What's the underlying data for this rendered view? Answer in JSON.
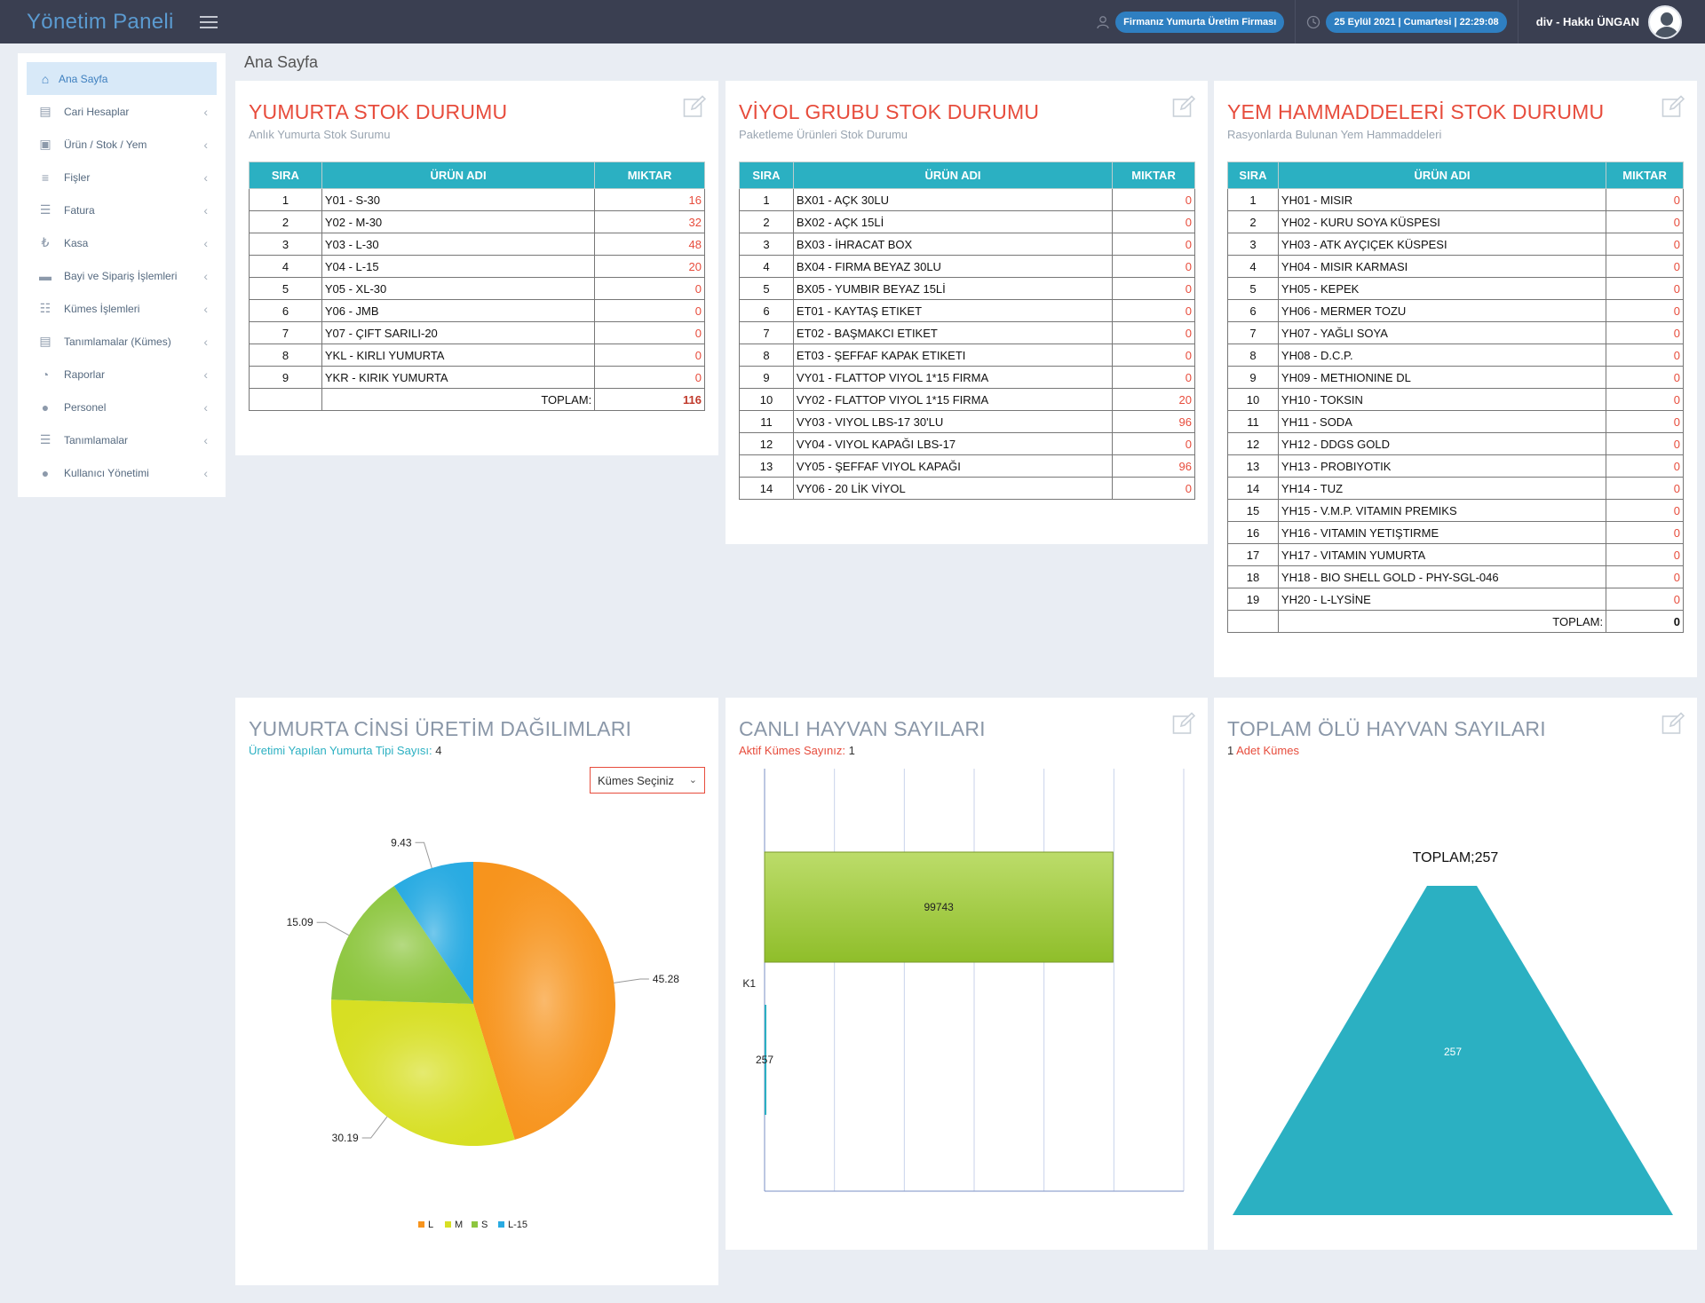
{
  "header": {
    "brand": "Yönetim Paneli",
    "company": "Firmanız Yumurta Üretim Firması",
    "datetime": "25 Eylül 2021 | Cumartesi | 22:29:08",
    "user": "div - Hakkı ÜNGAN"
  },
  "sidebar": {
    "items": [
      {
        "label": "Ana Sayfa",
        "icon": "home-icon"
      },
      {
        "label": "Cari Hesaplar",
        "icon": "book-icon"
      },
      {
        "label": "Ürün / Stok / Yem",
        "icon": "cart-icon"
      },
      {
        "label": "Fişler",
        "icon": "database-icon"
      },
      {
        "label": "Fatura",
        "icon": "server-icon"
      },
      {
        "label": "Kasa",
        "icon": "lira-icon"
      },
      {
        "label": "Bayi ve Sipariş İşlemleri",
        "icon": "truck-icon"
      },
      {
        "label": "Kümes İşlemleri",
        "icon": "sitemap-icon"
      },
      {
        "label": "Tanımlamalar (Kümes)",
        "icon": "book-icon"
      },
      {
        "label": "Raporlar",
        "icon": "dashboard-icon"
      },
      {
        "label": "Personel",
        "icon": "user-icon"
      },
      {
        "label": "Tanımlamalar",
        "icon": "list-icon"
      },
      {
        "label": "Kullanıcı Yönetimi",
        "icon": "user-icon"
      }
    ]
  },
  "breadcrumb": "Ana Sayfa",
  "egg_stock": {
    "title": "YUMURTA STOK DURUMU",
    "subtitle": "Anlık Yumurta Stok Surumu",
    "columns": [
      "SIRA",
      "ÜRÜN ADI",
      "MIKTAR"
    ],
    "rows": [
      [
        "1",
        "Y01 - S-30",
        "16"
      ],
      [
        "2",
        "Y02 - M-30",
        "32"
      ],
      [
        "3",
        "Y03 - L-30",
        "48"
      ],
      [
        "4",
        "Y04 - L-15",
        "20"
      ],
      [
        "5",
        "Y05 - XL-30",
        "0"
      ],
      [
        "6",
        "Y06 - JMB",
        "0"
      ],
      [
        "7",
        "Y07 - ÇIFT SARILI-20",
        "0"
      ],
      [
        "8",
        "YKL - KIRLI YUMURTA",
        "0"
      ],
      [
        "9",
        "YKR - KIRIK YUMURTA",
        "0"
      ]
    ],
    "total_label": "TOPLAM:",
    "total": "116"
  },
  "viyol_stock": {
    "title": "VİYOL GRUBU STOK DURUMU",
    "subtitle": "Paketleme Ürünleri Stok Durumu",
    "columns": [
      "SIRA",
      "ÜRÜN ADI",
      "MIKTAR"
    ],
    "rows": [
      [
        "1",
        "BX01 - AÇK 30LU",
        "0"
      ],
      [
        "2",
        "BX02 - AÇK 15Lİ",
        "0"
      ],
      [
        "3",
        "BX03 - İHRACAT BOX",
        "0"
      ],
      [
        "4",
        "BX04 - FIRMA BEYAZ 30LU",
        "0"
      ],
      [
        "5",
        "BX05 - YUMBIR BEYAZ 15Lİ",
        "0"
      ],
      [
        "6",
        "ET01 - KAYTAŞ ETIKET",
        "0"
      ],
      [
        "7",
        "ET02 - BAŞMAKCI ETIKET",
        "0"
      ],
      [
        "8",
        "ET03 - ŞEFFAF KAPAK ETIKETI",
        "0"
      ],
      [
        "9",
        "VY01 - FLATTOP VIYOL 1*15 FIRMA",
        "0"
      ],
      [
        "10",
        "VY02 - FLATTOP VIYOL 1*15 FIRMA",
        "20"
      ],
      [
        "11",
        "VY03 - VIYOL LBS-17 30'LU",
        "96"
      ],
      [
        "12",
        "VY04 - VIYOL KAPAĞI LBS-17",
        "0"
      ],
      [
        "13",
        "VY05 - ŞEFFAF VIYOL KAPAĞI",
        "96"
      ],
      [
        "14",
        "VY06 - 20 LİK VİYOL",
        "0"
      ]
    ]
  },
  "feed_stock": {
    "title": "YEM HAMMADDELERİ STOK DURUMU",
    "subtitle": "Rasyonlarda Bulunan Yem Hammaddeleri",
    "columns": [
      "SIRA",
      "ÜRÜN ADI",
      "MIKTAR"
    ],
    "rows": [
      [
        "1",
        "YH01 - MISIR",
        "0"
      ],
      [
        "2",
        "YH02 - KURU SOYA KÜSPESI",
        "0"
      ],
      [
        "3",
        "YH03 - ATK AYÇIÇEK KÜSPESI",
        "0"
      ],
      [
        "4",
        "YH04 - MISIR KARMASI",
        "0"
      ],
      [
        "5",
        "YH05 - KEPEK",
        "0"
      ],
      [
        "6",
        "YH06 - MERMER TOZU",
        "0"
      ],
      [
        "7",
        "YH07 - YAĞLI SOYA",
        "0"
      ],
      [
        "8",
        "YH08 - D.C.P.",
        "0"
      ],
      [
        "9",
        "YH09 - METHIONINE DL",
        "0"
      ],
      [
        "10",
        "YH10 - TOKSIN",
        "0"
      ],
      [
        "11",
        "YH11 - SODA",
        "0"
      ],
      [
        "12",
        "YH12 - DDGS GOLD",
        "0"
      ],
      [
        "13",
        "YH13 - PROBIYOTIK",
        "0"
      ],
      [
        "14",
        "YH14 - TUZ",
        "0"
      ],
      [
        "15",
        "YH15 - V.M.P. VITAMIN PREMIKS",
        "0"
      ],
      [
        "16",
        "YH16 - VITAMIN YETIŞTIRME",
        "0"
      ],
      [
        "17",
        "YH17 - VITAMIN YUMURTA",
        "0"
      ],
      [
        "18",
        "YH18 - BIO SHELL GOLD - PHY-SGL-046",
        "0"
      ],
      [
        "19",
        "YH20 - L-LYSİNE",
        "0"
      ]
    ],
    "total_label": "TOPLAM:",
    "total": "0"
  },
  "egg_distribution": {
    "title": "YUMURTA CİNSİ ÜRETİM DAĞILIMLARI",
    "stat_label": "Üretimi Yapılan Yumurta Tipi Sayısı:",
    "stat_value": "4",
    "select_value": "Kümes Seçiniz"
  },
  "live_animals": {
    "title": "CANLI HAYVAN SAYILARI",
    "stat_label": "Aktif Kümes Sayınız:",
    "stat_value": "1"
  },
  "dead_animals": {
    "title": "TOPLAM ÖLÜ HAYVAN SAYILARI",
    "stat_value": "1",
    "stat_label": "Adet Kümes"
  },
  "chart_data": [
    {
      "type": "pie",
      "categories": [
        "L",
        "M",
        "S",
        "L-15"
      ],
      "values": [
        45.28,
        30.19,
        15.09,
        9.43
      ],
      "colors": [
        "#f7941d",
        "#d7df23",
        "#8dc63f",
        "#29abe2"
      ],
      "legend_position": "bottom"
    },
    {
      "type": "bar",
      "orientation": "horizontal",
      "categories": [
        "K1"
      ],
      "series": [
        {
          "values": [
            99743
          ],
          "color": "#9dc736"
        },
        {
          "values": [
            257
          ],
          "color": "#2bb0c2"
        }
      ],
      "xlim": [
        0,
        120000
      ],
      "grid": true
    },
    {
      "type": "funnel",
      "title": "TOPLAM;257",
      "values": [
        257
      ],
      "color": "#2bb0c2"
    }
  ]
}
